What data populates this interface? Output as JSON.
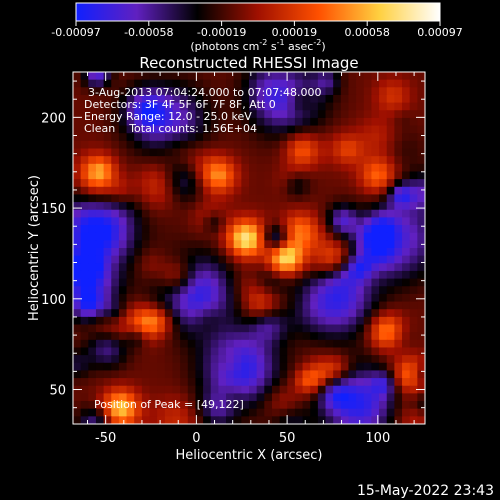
{
  "chart_data": {
    "type": "heatmap",
    "title": "Reconstructed RHESSI Image",
    "xlabel": "Heliocentric X (arcsec)",
    "ylabel": "Heliocentric Y (arcsec)",
    "xlim": [
      -68,
      126
    ],
    "ylim": [
      31,
      225
    ],
    "x_ticks": [
      -50,
      0,
      50,
      100
    ],
    "y_ticks": [
      50,
      100,
      150,
      200
    ],
    "info_lines": [
      "3-Aug-2013 07:04:24.000 to 07:07:48.000",
      "Detectors: 3F 4F 5F 6F 7F 8F, Att 0",
      "Energy Range: 12.0 - 25.0 keV",
      "Clean    Total counts: 1.56E+04"
    ],
    "peak_label": "Position of Peak = [49,122]",
    "peak_position": [
      49,
      122
    ],
    "colorbar": {
      "min": -0.00097,
      "max": 0.00097,
      "tick_labels": [
        "-0.00097",
        "-0.00058",
        "-0.00019",
        "0.00019",
        "0.00058",
        "0.00097"
      ],
      "unit_main": "(photons cm",
      "unit_exp1": "-2",
      "unit_s": " s",
      "unit_exp2": "-1",
      "unit_asec": " asec",
      "unit_exp3": "-2",
      "unit_close": ")",
      "colors": [
        "#1020ff",
        "#6020c0",
        "#000000",
        "#a01000",
        "#ff5000",
        "#ffd040",
        "#ffffff"
      ]
    },
    "sources": [
      {
        "x": 49,
        "y": 122,
        "peak": 0.00097
      },
      {
        "x": 27,
        "y": 133,
        "peak": 0.00078
      },
      {
        "x": 12,
        "y": 168,
        "peak": 0.0006
      },
      {
        "x": 76,
        "y": 121,
        "peak": 0.00055
      },
      {
        "x": 105,
        "y": 82,
        "peak": 0.00062
      },
      {
        "x": 118,
        "y": 58,
        "peak": 0.00058
      },
      {
        "x": 100,
        "y": 168,
        "peak": 0.0005
      },
      {
        "x": -27,
        "y": 88,
        "peak": 0.00065
      },
      {
        "x": -42,
        "y": 40,
        "peak": 0.0007
      },
      {
        "x": -55,
        "y": 170,
        "peak": 0.0005
      },
      {
        "x": 58,
        "y": 182,
        "peak": 0.00048
      },
      {
        "x": -10,
        "y": 112,
        "peak": 0.00045
      },
      {
        "x": 36,
        "y": 96,
        "peak": 0.00042
      },
      {
        "x": 70,
        "y": 58,
        "peak": 0.0004
      }
    ],
    "negative_regions": [
      {
        "x": -55,
        "y": 137,
        "depth": -0.00095
      },
      {
        "x": 0,
        "y": 103,
        "depth": -0.00075
      },
      {
        "x": 24,
        "y": 62,
        "depth": -0.0008
      },
      {
        "x": 78,
        "y": 100,
        "depth": -0.0007
      },
      {
        "x": 112,
        "y": 132,
        "depth": -0.0007
      },
      {
        "x": 50,
        "y": 210,
        "depth": -0.0006
      },
      {
        "x": -15,
        "y": 198,
        "depth": -0.0006
      },
      {
        "x": 90,
        "y": 42,
        "depth": -0.00075
      }
    ]
  },
  "timestamp": "15-May-2022 23:43"
}
